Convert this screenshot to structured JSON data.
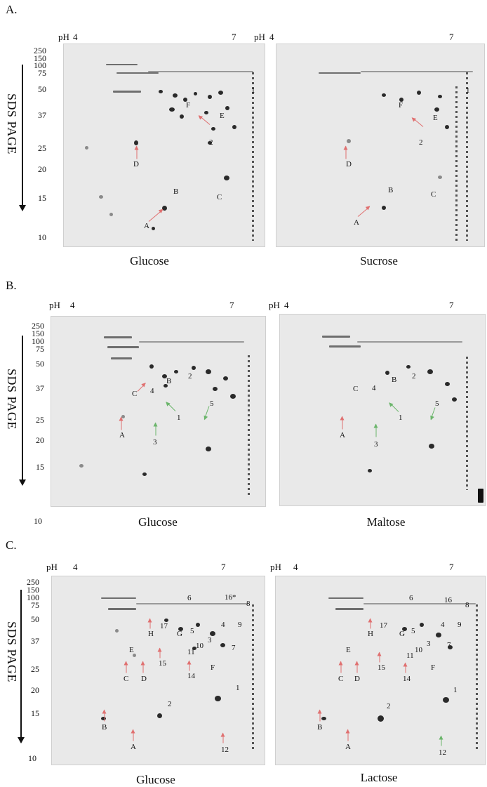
{
  "panels": [
    {
      "letter": "A.",
      "ph_label": "pH",
      "ph_low": "4",
      "ph_high": "7",
      "mw_ticks": [
        "250",
        "150",
        "100",
        "75",
        "50",
        "37",
        "25",
        "20",
        "15",
        "10"
      ],
      "axis_label": "SDS PAGE",
      "gels": [
        {
          "caption": "Glucose",
          "labels": [
            "F",
            "E",
            "1",
            "2",
            "D",
            "B",
            "C",
            "A"
          ]
        },
        {
          "caption": "Sucrose",
          "labels": [
            "F",
            "E",
            "1",
            "2",
            "D",
            "B",
            "C",
            "A"
          ]
        }
      ]
    },
    {
      "letter": "B.",
      "ph_label": "pH",
      "ph_low": "4",
      "ph_high": "7",
      "mw_ticks": [
        "250",
        "150",
        "100",
        "75",
        "50",
        "37",
        "25",
        "20",
        "15",
        "10"
      ],
      "axis_label": "SDS PAGE",
      "gels": [
        {
          "caption": "Glucose",
          "labels": [
            "B",
            "2",
            "C",
            "4",
            "1",
            "5",
            "A",
            "3"
          ]
        },
        {
          "caption": "Maltose",
          "labels": [
            "B",
            "2",
            "C",
            "4",
            "1",
            "5",
            "A",
            "3"
          ]
        }
      ]
    },
    {
      "letter": "C.",
      "ph_label": "pH",
      "ph_low": "4",
      "ph_high": "7",
      "mw_ticks": [
        "250",
        "150",
        "100",
        "75",
        "50",
        "37",
        "25",
        "20",
        "15",
        "10"
      ],
      "axis_label": "SDS PAGE",
      "gels": [
        {
          "caption": "Glucose",
          "labels": [
            "6",
            "16*",
            "8",
            "17",
            "4",
            "9",
            "H",
            "G",
            "5",
            "3",
            "10",
            "11",
            "7",
            "E",
            "15",
            "14",
            "F",
            "C",
            "D",
            "1",
            "2",
            "B",
            "A",
            "12"
          ]
        },
        {
          "caption": "Lactose",
          "labels": [
            "6",
            "16",
            "8",
            "17",
            "4",
            "9",
            "H",
            "G",
            "5",
            "3",
            "10",
            "11",
            "7",
            "E",
            "15",
            "14",
            "F",
            "C",
            "D",
            "1",
            "2",
            "B",
            "A",
            "12"
          ]
        }
      ]
    }
  ]
}
